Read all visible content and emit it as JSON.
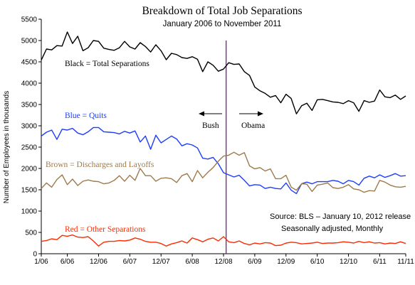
{
  "colors": {
    "total": "#000000",
    "quits": "#1f3cff",
    "layoffs": "#9c7a4e",
    "other": "#ff2a00",
    "divider": "#7a1aa0"
  },
  "chart_data": {
    "type": "line",
    "title": "Breakdown of Total Job Separations",
    "subtitle": "January 2006 to November 2011",
    "ylabel": "Number of Employees in thousands",
    "xlabel": "",
    "ylim": [
      0,
      5500
    ],
    "xlim": [
      0,
      70
    ],
    "grid": false,
    "y_ticks": [
      0,
      500,
      1000,
      1500,
      2000,
      2500,
      3000,
      3500,
      4000,
      4500,
      5000,
      5500
    ],
    "x_tick_labels": [
      "1/06",
      "6/06",
      "12/06",
      "6/07",
      "12/07",
      "6/08",
      "12/08",
      "6/09",
      "12/09",
      "6/10",
      "12/10",
      "6/11",
      "11/11"
    ],
    "x_tick_positions": [
      0,
      5,
      11,
      17,
      23,
      29,
      35,
      41,
      47,
      53,
      59,
      65,
      70
    ],
    "divider_x": 35.5,
    "series": [
      {
        "name": "Black = Total Separations",
        "color_key": "total",
        "values": [
          4540,
          4800,
          4780,
          4880,
          4870,
          5200,
          4930,
          5100,
          4760,
          4830,
          5000,
          4980,
          4820,
          4790,
          4770,
          4830,
          4980,
          4850,
          4800,
          4950,
          4860,
          4730,
          4900,
          4760,
          4550,
          4700,
          4670,
          4600,
          4580,
          4620,
          4560,
          4270,
          4500,
          4420,
          4280,
          4330,
          4480,
          4440,
          4450,
          4270,
          4180,
          3910,
          3820,
          3760,
          3670,
          3710,
          3540,
          3740,
          3640,
          3280,
          3470,
          3530,
          3360,
          3610,
          3620,
          3590,
          3560,
          3550,
          3520,
          3590,
          3540,
          3340,
          3590,
          3550,
          3580,
          3840,
          3680,
          3660,
          3720,
          3620,
          3700
        ]
      },
      {
        "name": "Blue = Quits",
        "color_key": "quits",
        "values": [
          2760,
          2850,
          2900,
          2680,
          2920,
          2900,
          2940,
          2830,
          2790,
          2860,
          2960,
          2960,
          2860,
          2850,
          2840,
          2810,
          2870,
          2830,
          2880,
          2620,
          2760,
          2450,
          2780,
          2600,
          2680,
          2760,
          2690,
          2530,
          2580,
          2550,
          2480,
          2240,
          2220,
          2260,
          2110,
          1900,
          1850,
          1800,
          1840,
          1720,
          1590,
          1620,
          1610,
          1530,
          1560,
          1530,
          1520,
          1660,
          1490,
          1410,
          1640,
          1680,
          1640,
          1690,
          1690,
          1690,
          1720,
          1700,
          1640,
          1720,
          1690,
          1610,
          1770,
          1820,
          1780,
          1850,
          1790,
          1830,
          1880,
          1820,
          1830
        ]
      },
      {
        "name": "Brown = Discharges and Layoffs",
        "color_key": "layoffs",
        "values": [
          1530,
          1660,
          1560,
          1740,
          1850,
          1620,
          1750,
          1600,
          1700,
          1730,
          1700,
          1690,
          1640,
          1660,
          1720,
          1830,
          1700,
          1840,
          1720,
          2000,
          1830,
          1830,
          1700,
          1770,
          1780,
          1760,
          1670,
          1830,
          1880,
          1690,
          1950,
          1780,
          1910,
          2020,
          2170,
          2290,
          2310,
          2380,
          2310,
          2370,
          2060,
          1990,
          2020,
          1940,
          1990,
          1760,
          1760,
          1840,
          1560,
          1490,
          1640,
          1630,
          1460,
          1610,
          1630,
          1660,
          1550,
          1530,
          1560,
          1620,
          1520,
          1500,
          1440,
          1480,
          1470,
          1720,
          1680,
          1610,
          1570,
          1560,
          1580
        ]
      },
      {
        "name": "Red = Other Separations",
        "color_key": "other",
        "values": [
          290,
          310,
          350,
          330,
          430,
          410,
          440,
          390,
          380,
          400,
          300,
          180,
          270,
          290,
          290,
          310,
          300,
          320,
          370,
          340,
          290,
          270,
          270,
          240,
          180,
          230,
          260,
          300,
          250,
          370,
          330,
          280,
          340,
          370,
          300,
          400,
          280,
          260,
          300,
          240,
          210,
          250,
          230,
          260,
          250,
          190,
          200,
          250,
          270,
          260,
          230,
          240,
          250,
          270,
          240,
          250,
          250,
          260,
          280,
          270,
          250,
          290,
          260,
          280,
          250,
          260,
          230,
          250,
          240,
          280,
          240
        ]
      }
    ],
    "annotations": {
      "total_label": "Black = Total Separations",
      "quits_label": "Blue = Quits",
      "layoffs_label": "Brown = Discharges and Layoffs",
      "other_label": "Red = Other Separations",
      "bush_label": "Bush",
      "obama_label": "Obama",
      "source_line1": "Source:  BLS – January 10, 2012 release",
      "source_line2": "Seasonally adjusted, Monthly"
    }
  }
}
